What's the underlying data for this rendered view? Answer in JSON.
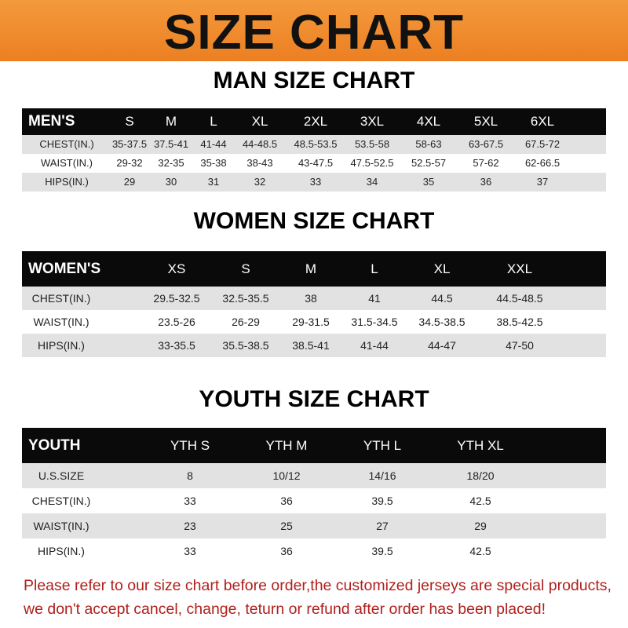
{
  "banner": {
    "title": "SIZE CHART",
    "color": "#ee8428"
  },
  "men": {
    "title": "MAN SIZE CHART",
    "header": [
      "MEN'S",
      "S",
      "M",
      "L",
      "XL",
      "2XL",
      "3XL",
      "4XL",
      "5XL",
      "6XL"
    ],
    "rows": [
      [
        "CHEST(IN.)",
        "35-37.5",
        "37.5-41",
        "41-44",
        "44-48.5",
        "48.5-53.5",
        "53.5-58",
        "58-63",
        "63-67.5",
        "67.5-72"
      ],
      [
        "WAIST(IN.)",
        "29-32",
        "32-35",
        "35-38",
        "38-43",
        "43-47.5",
        "47.5-52.5",
        "52.5-57",
        "57-62",
        "62-66.5"
      ],
      [
        "HIPS(IN.)",
        "29",
        "30",
        "31",
        "32",
        "33",
        "34",
        "35",
        "36",
        "37"
      ]
    ]
  },
  "women": {
    "title": "WOMEN SIZE CHART",
    "header": [
      "WOMEN'S",
      "XS",
      "S",
      "M",
      "L",
      "XL",
      "XXL"
    ],
    "rows": [
      [
        "CHEST(IN.)",
        "29.5-32.5",
        "32.5-35.5",
        "38",
        "41",
        "44.5",
        "44.5-48.5"
      ],
      [
        "WAIST(IN.)",
        "23.5-26",
        "26-29",
        "29-31.5",
        "31.5-34.5",
        "34.5-38.5",
        "38.5-42.5"
      ],
      [
        "HIPS(IN.)",
        "33-35.5",
        "35.5-38.5",
        "38.5-41",
        "41-44",
        "44-47",
        "47-50"
      ]
    ]
  },
  "youth": {
    "title": "YOUTH SIZE CHART",
    "header": [
      "YOUTH",
      "YTH S",
      "YTH M",
      "YTH L",
      "YTH XL"
    ],
    "rows": [
      [
        "U.S.SIZE",
        "8",
        "10/12",
        "14/16",
        "18/20"
      ],
      [
        "CHEST(IN.)",
        "33",
        "36",
        "39.5",
        "42.5"
      ],
      [
        "WAIST(IN.)",
        "23",
        "25",
        "27",
        "29"
      ],
      [
        "HIPS(IN.)",
        "33",
        "36",
        "39.5",
        "42.5"
      ]
    ]
  },
  "notice": {
    "line1": "Please refer to our size chart before order,the customized jerseys are special products,",
    "line2": "we don't accept cancel, change, teturn or refund after order has been placed!",
    "color": "#b0201c"
  }
}
